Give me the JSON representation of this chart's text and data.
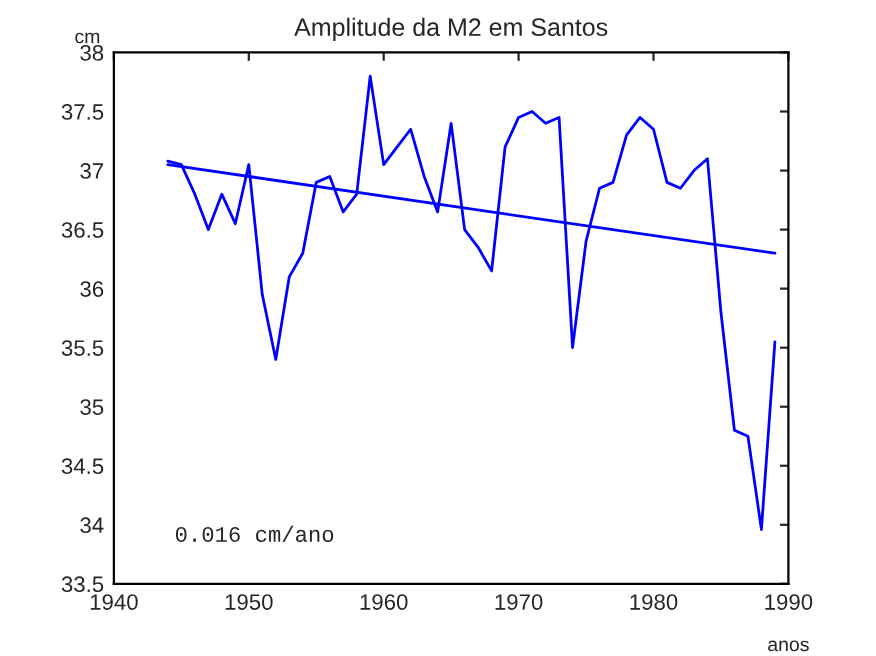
{
  "chart_data": {
    "type": "line",
    "title": "Amplitude da M2 em Santos",
    "xlabel": "anos",
    "ylabel": "cm",
    "xlim": [
      1940,
      1990
    ],
    "xticks": [
      1940,
      1950,
      1960,
      1970,
      1980,
      1990
    ],
    "ylim": [
      33.5,
      38
    ],
    "yticks": [
      33.5,
      34,
      34.5,
      35,
      35.5,
      36,
      36.5,
      37,
      37.5,
      38
    ],
    "grid": false,
    "legend": false,
    "series": [
      {
        "color": "#0000ff",
        "x": [
          1944,
          1945,
          1946,
          1947,
          1948,
          1949,
          1950,
          1951,
          1952,
          1953,
          1954,
          1955,
          1956,
          1957,
          1958,
          1959,
          1960,
          1961,
          1962,
          1963,
          1964,
          1965,
          1966,
          1967,
          1968,
          1969,
          1970,
          1971,
          1972,
          1973,
          1974,
          1975,
          1976,
          1977,
          1978,
          1979,
          1980,
          1981,
          1982,
          1983,
          1984,
          1985,
          1986,
          1987,
          1988,
          1989
        ],
        "values": [
          37.08,
          37.05,
          36.8,
          36.5,
          36.8,
          36.55,
          37.05,
          35.95,
          35.4,
          36.1,
          36.3,
          36.9,
          36.95,
          36.65,
          36.8,
          37.8,
          37.05,
          37.2,
          37.35,
          36.95,
          36.65,
          37.4,
          36.5,
          36.35,
          36.15,
          37.2,
          37.45,
          37.5,
          37.4,
          37.45,
          35.5,
          36.4,
          36.85,
          36.9,
          37.3,
          37.45,
          37.35,
          36.9,
          36.85,
          37.0,
          37.1,
          35.8,
          34.8,
          34.75,
          33.96,
          35.55
        ]
      },
      {
        "color": "#0000ff",
        "x": [
          1944,
          1989
        ],
        "values": [
          37.05,
          36.3
        ]
      }
    ],
    "annotations": [
      "0.016 cm/ano"
    ]
  }
}
